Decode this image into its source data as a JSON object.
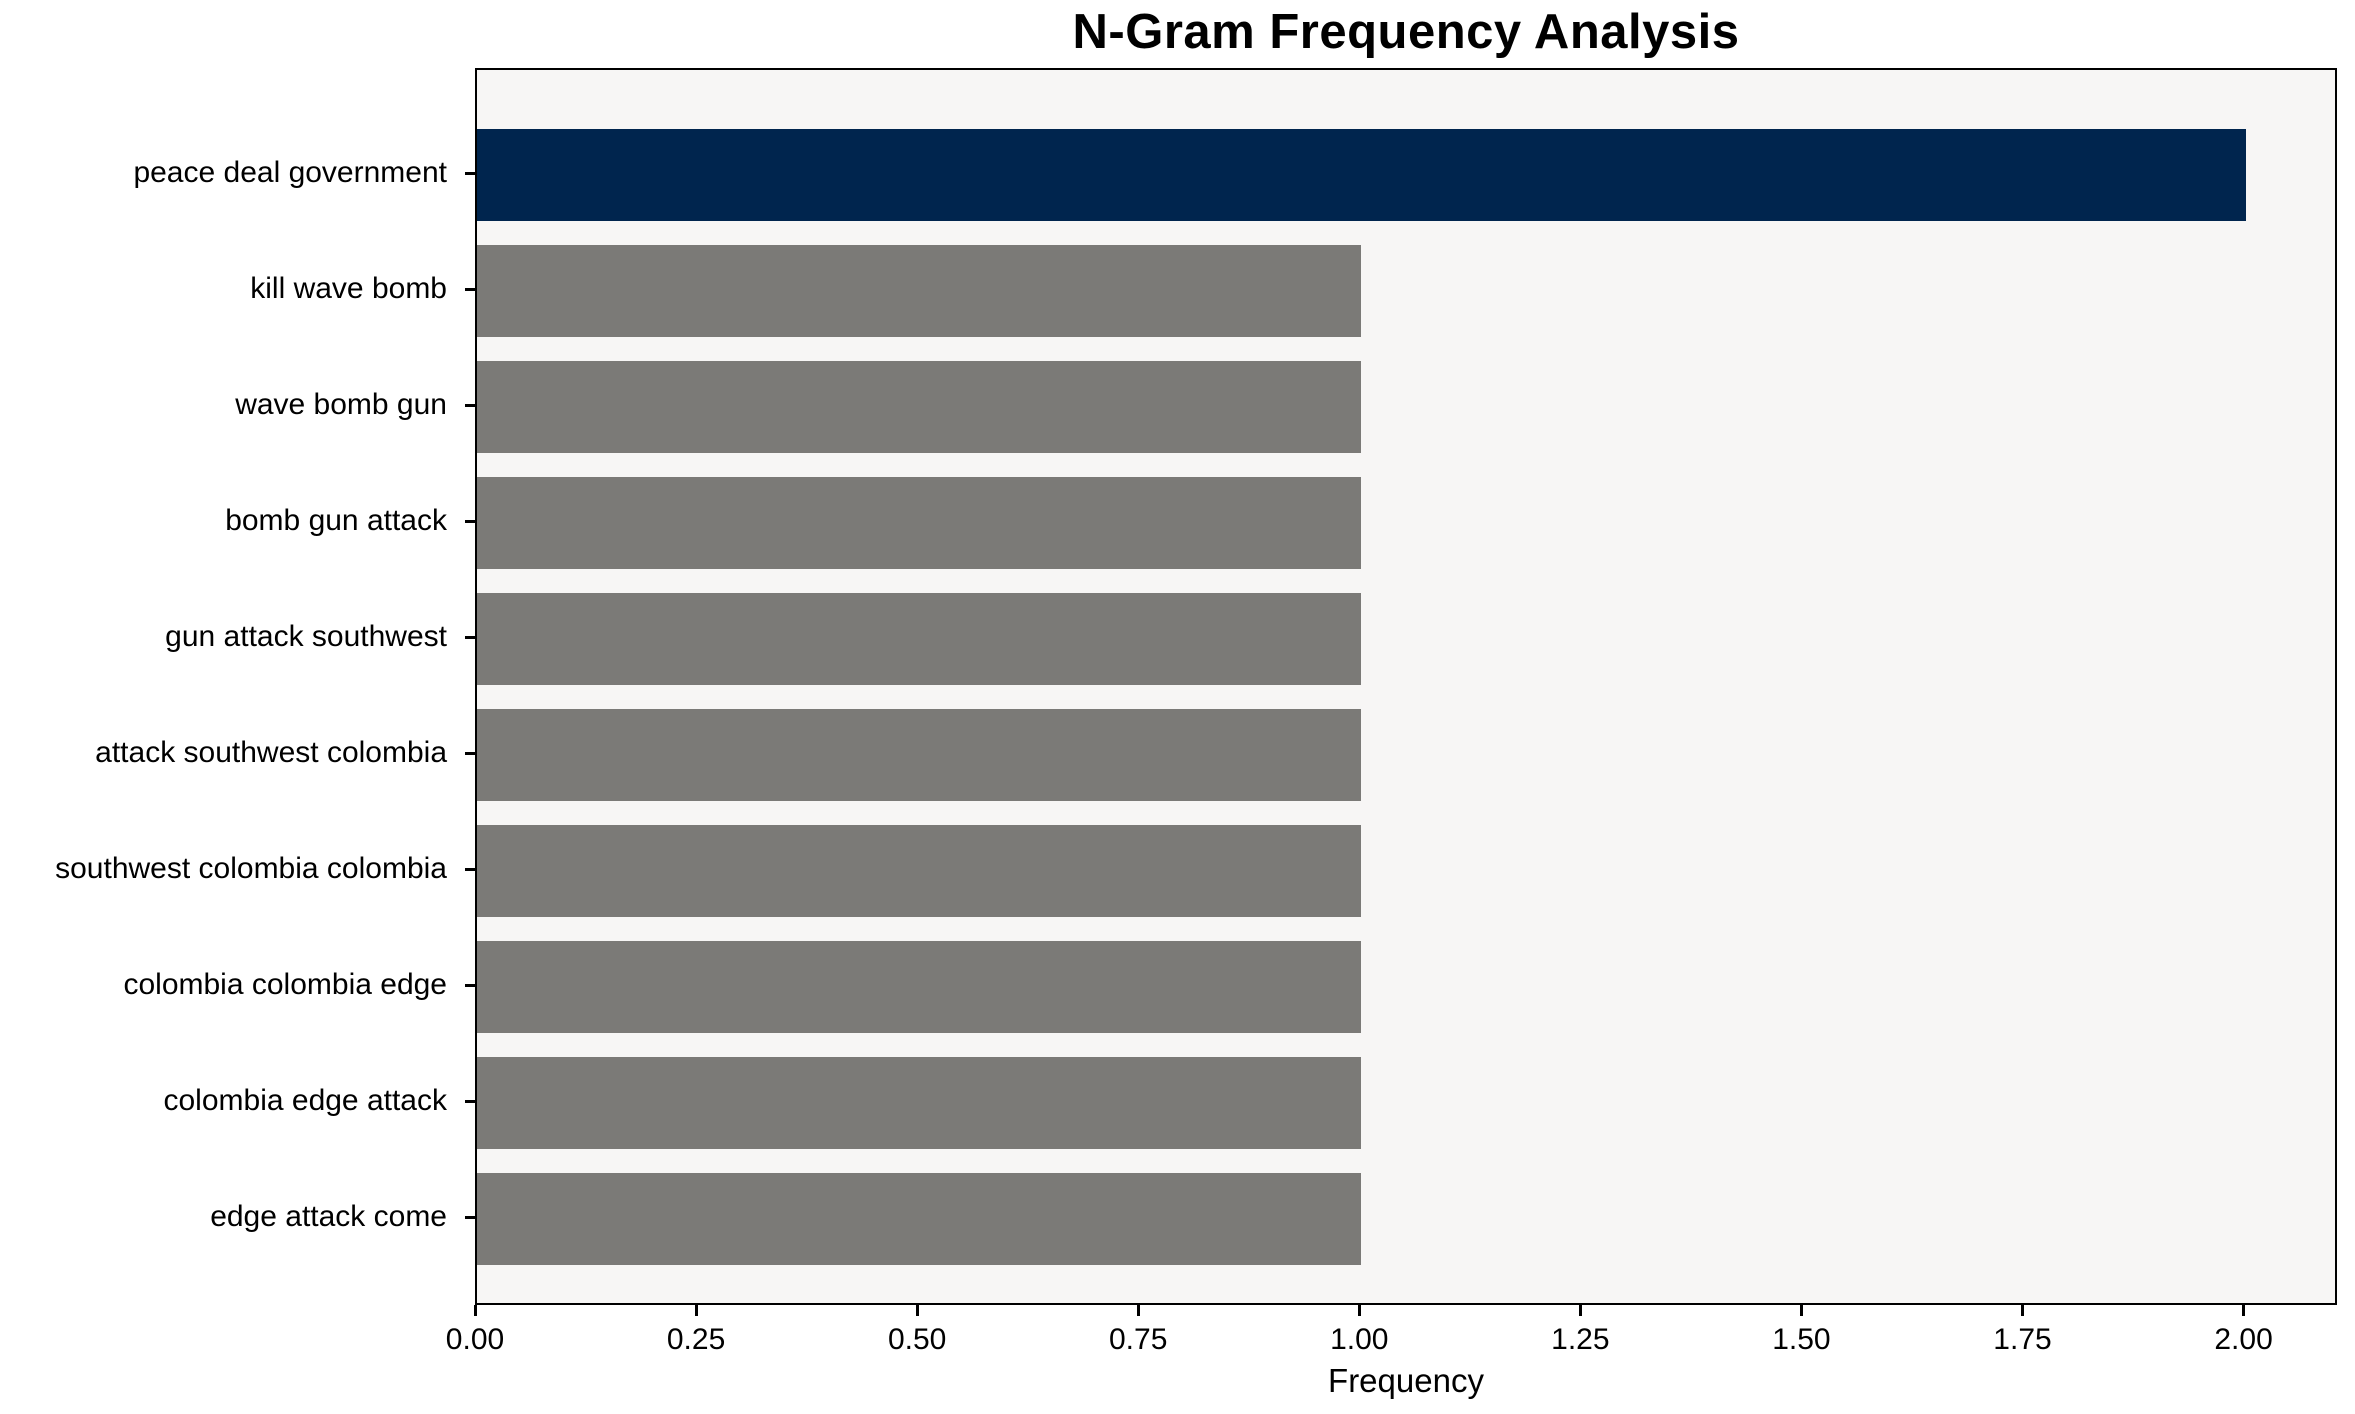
{
  "chart_data": {
    "type": "bar",
    "orientation": "horizontal",
    "title": "N-Gram Frequency Analysis",
    "xlabel": "Frequency",
    "ylabel": "",
    "categories": [
      "peace deal government",
      "kill wave bomb",
      "wave bomb gun",
      "bomb gun attack",
      "gun attack southwest",
      "attack southwest colombia",
      "southwest colombia colombia",
      "colombia colombia edge",
      "colombia edge attack",
      "edge attack come"
    ],
    "values": [
      2,
      1,
      1,
      1,
      1,
      1,
      1,
      1,
      1,
      1
    ],
    "bar_colors": [
      "#00254e",
      "#7b7a77",
      "#7b7a77",
      "#7b7a77",
      "#7b7a77",
      "#7b7a77",
      "#7b7a77",
      "#7b7a77",
      "#7b7a77",
      "#7b7a77"
    ],
    "highlight_color": "#00254e",
    "default_bar_color": "#7b7a77",
    "xlim": [
      0,
      2.1
    ],
    "xticks": [
      0.0,
      0.25,
      0.5,
      0.75,
      1.0,
      1.25,
      1.5,
      1.75,
      2.0
    ],
    "xtick_labels": [
      "0.00",
      "0.25",
      "0.50",
      "0.75",
      "1.00",
      "1.25",
      "1.50",
      "1.75",
      "2.00"
    ],
    "grid": false,
    "legend": null,
    "plot_background": "#f7f6f5",
    "figure_background": "#ffffff",
    "spine_color": "#000000",
    "text_color": "#000000"
  }
}
